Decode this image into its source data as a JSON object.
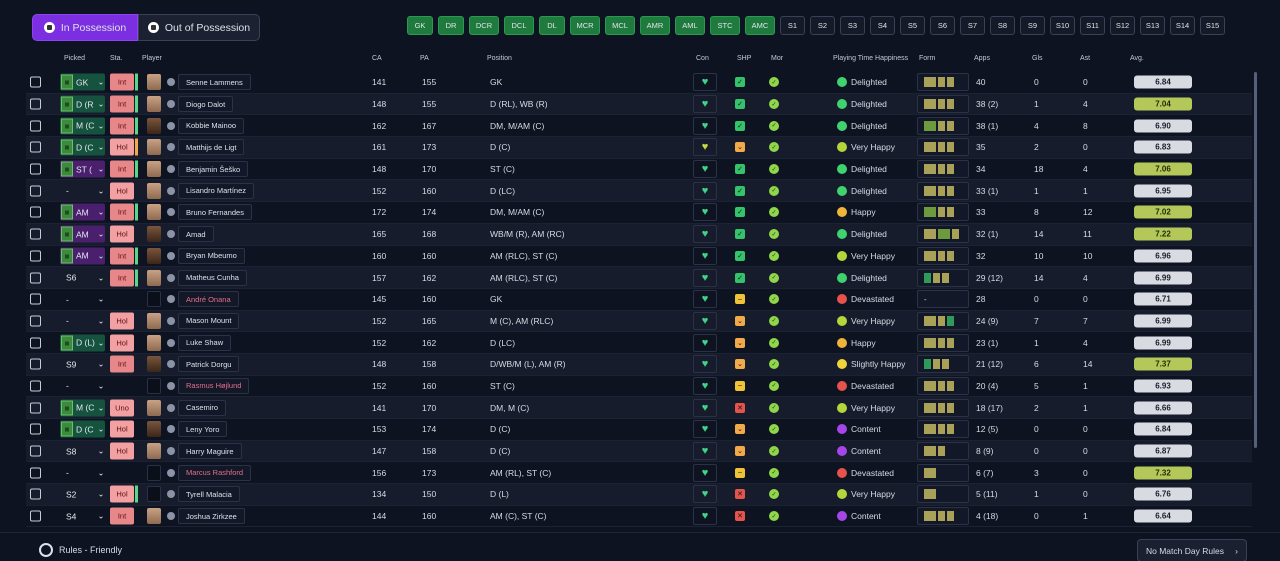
{
  "tabs": {
    "in_possession": "In Possession",
    "out_of_possession": "Out of Possession"
  },
  "positions": [
    "GK",
    "DR",
    "DCR",
    "DCL",
    "DL",
    "MCR",
    "MCL",
    "AMR",
    "AML",
    "STC",
    "AMC"
  ],
  "slots": [
    "S1",
    "S2",
    "S3",
    "S4",
    "S5",
    "S6",
    "S7",
    "S8",
    "S9",
    "S10",
    "S11",
    "S12",
    "S13",
    "S14",
    "S15"
  ],
  "headers": {
    "picked": "Picked",
    "sta": "Sta.",
    "player": "Player",
    "ca": "CA",
    "pa": "PA",
    "position": "Position",
    "con": "Con",
    "shp": "SHP",
    "mor": "Mor",
    "pth": "Playing Time Happiness",
    "form": "Form",
    "apps": "Apps",
    "gls": "Gls",
    "ast": "Ast",
    "avg": "Avg."
  },
  "players": [
    {
      "picked": "GK",
      "pick_style": "pitch",
      "sta": "Int",
      "bar": "g",
      "name": "Senne Lammens",
      "ca": "141",
      "pa": "155",
      "pos": "GK",
      "con": "g",
      "shp": "ok",
      "hap": "Delighted",
      "emo": "delighted",
      "form": "abb",
      "apps": "40",
      "gls": "0",
      "ast": "0",
      "avg": "6.84",
      "avg_hi": false,
      "face": "l"
    },
    {
      "picked": "D (R",
      "pick_style": "pitch-grn",
      "sta": "Int",
      "bar": "g",
      "name": "Diogo Dalot",
      "ca": "148",
      "pa": "155",
      "pos": "D (RL), WB (R)",
      "con": "g",
      "shp": "ok",
      "hap": "Delighted",
      "emo": "delighted",
      "form": "abb",
      "apps": "38 (2)",
      "gls": "1",
      "ast": "4",
      "avg": "7.04",
      "avg_hi": true,
      "face": "l"
    },
    {
      "picked": "M (C",
      "pick_style": "pitch-grn",
      "sta": "Int",
      "bar": "g",
      "name": "Kobbie Mainoo",
      "ca": "162",
      "pa": "167",
      "pos": "DM, M/AM (C)",
      "con": "g",
      "shp": "ok",
      "hap": "Delighted",
      "emo": "delighted",
      "form": "cbb",
      "apps": "38 (1)",
      "gls": "4",
      "ast": "8",
      "avg": "6.90",
      "avg_hi": false,
      "face": "d"
    },
    {
      "picked": "D (C",
      "pick_style": "pitch-grn",
      "sta": "Hol",
      "bar": "o",
      "name": "Matthijs de Ligt",
      "ca": "161",
      "pa": "173",
      "pos": "D (C)",
      "con": "y",
      "shp": "warn",
      "hap": "Very Happy",
      "emo": "veryhappy",
      "form": "abb",
      "apps": "35",
      "gls": "2",
      "ast": "0",
      "avg": "6.83",
      "avg_hi": false,
      "face": "l"
    },
    {
      "picked": "ST (",
      "pick_style": "pitch-pur",
      "sta": "Int",
      "bar": "g",
      "name": "Benjamin Šeško",
      "ca": "148",
      "pa": "170",
      "pos": "ST (C)",
      "con": "g",
      "shp": "ok",
      "hap": "Delighted",
      "emo": "delighted",
      "form": "abb",
      "apps": "34",
      "gls": "18",
      "ast": "4",
      "avg": "7.06",
      "avg_hi": true,
      "face": "l"
    },
    {
      "picked": "-",
      "pick_style": "plain",
      "sta": "Hol",
      "bar": "",
      "name": "Lisandro Martínez",
      "ca": "152",
      "pa": "160",
      "pos": "D (LC)",
      "con": "g",
      "shp": "ok",
      "hap": "Delighted",
      "emo": "delighted",
      "form": "abb",
      "apps": "33 (1)",
      "gls": "1",
      "ast": "1",
      "avg": "6.95",
      "avg_hi": false,
      "face": "l"
    },
    {
      "picked": "AM",
      "pick_style": "pitch-pur",
      "sta": "Int",
      "bar": "g",
      "name": "Bruno Fernandes",
      "ca": "172",
      "pa": "174",
      "pos": "DM, M/AM (C)",
      "con": "g",
      "shp": "ok",
      "hap": "Happy",
      "emo": "happy",
      "form": "cbb",
      "apps": "33",
      "gls": "8",
      "ast": "12",
      "avg": "7.02",
      "avg_hi": true,
      "face": "l"
    },
    {
      "picked": "AM",
      "pick_style": "pitch-pur",
      "sta": "Hol",
      "bar": "",
      "name": "Amad",
      "ca": "165",
      "pa": "168",
      "pos": "WB/M (R), AM (RC)",
      "con": "g",
      "shp": "ok",
      "hap": "Delighted",
      "emo": "delighted",
      "form": "acb",
      "apps": "32 (1)",
      "gls": "14",
      "ast": "11",
      "avg": "7.22",
      "avg_hi": true,
      "face": "d"
    },
    {
      "picked": "AM",
      "pick_style": "pitch-pur",
      "sta": "Int",
      "bar": "g",
      "name": "Bryan Mbeumo",
      "ca": "160",
      "pa": "160",
      "pos": "AM (RLC), ST (C)",
      "con": "g",
      "shp": "ok",
      "hap": "Very Happy",
      "emo": "veryhappy",
      "form": "abb",
      "apps": "32",
      "gls": "10",
      "ast": "10",
      "avg": "6.96",
      "avg_hi": false,
      "face": "d"
    },
    {
      "picked": "S6",
      "pick_style": "plain",
      "sta": "Int",
      "bar": "g",
      "name": "Matheus Cunha",
      "ca": "157",
      "pa": "162",
      "pos": "AM (RLC), ST (C)",
      "con": "g",
      "shp": "ok",
      "hap": "Delighted",
      "emo": "delighted",
      "form": "dbb",
      "apps": "29 (12)",
      "gls": "14",
      "ast": "4",
      "avg": "6.99",
      "avg_hi": false,
      "face": "l"
    },
    {
      "picked": "-",
      "pick_style": "plain",
      "sta": "",
      "bar": "",
      "name": "André Onana",
      "pink": true,
      "ca": "145",
      "pa": "160",
      "pos": "GK",
      "con": "g",
      "shp": "mid",
      "hap": "Devastated",
      "emo": "devastated",
      "form": "-",
      "apps": "28",
      "gls": "0",
      "ast": "0",
      "avg": "6.71",
      "avg_hi": false,
      "face": "s"
    },
    {
      "picked": "-",
      "pick_style": "plain",
      "sta": "Hol",
      "bar": "",
      "name": "Mason Mount",
      "ca": "152",
      "pa": "165",
      "pos": "M (C), AM (RLC)",
      "con": "g",
      "shp": "warn",
      "hap": "Very Happy",
      "emo": "veryhappy",
      "form": "abd",
      "apps": "24 (9)",
      "gls": "7",
      "ast": "7",
      "avg": "6.99",
      "avg_hi": false,
      "face": "l"
    },
    {
      "picked": "D (L)",
      "pick_style": "pitch-grn",
      "sta": "Hol",
      "bar": "",
      "name": "Luke Shaw",
      "ca": "152",
      "pa": "162",
      "pos": "D (LC)",
      "con": "g",
      "shp": "warn",
      "hap": "Happy",
      "emo": "happy",
      "form": "abb",
      "apps": "23 (1)",
      "gls": "1",
      "ast": "4",
      "avg": "6.99",
      "avg_hi": false,
      "face": "l"
    },
    {
      "picked": "S9",
      "pick_style": "plain",
      "sta": "Int",
      "bar": "",
      "name": "Patrick Dorgu",
      "ca": "148",
      "pa": "158",
      "pos": "D/WB/M (L), AM (R)",
      "con": "g",
      "shp": "warn",
      "hap": "Slightly Happy",
      "emo": "slightly",
      "form": "dbb",
      "apps": "21 (12)",
      "gls": "6",
      "ast": "14",
      "avg": "7.37",
      "avg_hi": true,
      "face": "d"
    },
    {
      "picked": "-",
      "pick_style": "plain",
      "sta": "",
      "bar": "",
      "name": "Rasmus Højlund",
      "pink": true,
      "ca": "152",
      "pa": "160",
      "pos": "ST (C)",
      "con": "g",
      "shp": "mid",
      "hap": "Devastated",
      "emo": "devastated",
      "form": "abb",
      "apps": "20 (4)",
      "gls": "5",
      "ast": "1",
      "avg": "6.93",
      "avg_hi": false,
      "face": "s"
    },
    {
      "picked": "M (C",
      "pick_style": "pitch-grn",
      "sta": "Uno",
      "bar": "",
      "name": "Casemiro",
      "ca": "141",
      "pa": "170",
      "pos": "DM, M (C)",
      "con": "g",
      "shp": "bad",
      "hap": "Very Happy",
      "emo": "veryhappy",
      "form": "abb",
      "apps": "18 (17)",
      "gls": "2",
      "ast": "1",
      "avg": "6.66",
      "avg_hi": false,
      "face": "l"
    },
    {
      "picked": "D (C",
      "pick_style": "pitch-grn",
      "sta": "Hol",
      "bar": "",
      "name": "Leny Yoro",
      "ca": "153",
      "pa": "174",
      "pos": "D (C)",
      "con": "g",
      "shp": "warn",
      "hap": "Content",
      "emo": "content",
      "form": "abb",
      "apps": "12 (5)",
      "gls": "0",
      "ast": "0",
      "avg": "6.84",
      "avg_hi": false,
      "face": "d"
    },
    {
      "picked": "S8",
      "pick_style": "plain",
      "sta": "Hol",
      "bar": "",
      "name": "Harry Maguire",
      "ca": "147",
      "pa": "158",
      "pos": "D (C)",
      "con": "g",
      "shp": "warn",
      "hap": "Content",
      "emo": "content",
      "form": "ab",
      "apps": "8 (9)",
      "gls": "0",
      "ast": "0",
      "avg": "6.87",
      "avg_hi": false,
      "face": "l"
    },
    {
      "picked": "-",
      "pick_style": "plain",
      "sta": "",
      "bar": "",
      "name": "Marcus Rashford",
      "pink": true,
      "ca": "156",
      "pa": "173",
      "pos": "AM (RL), ST (C)",
      "con": "g",
      "shp": "mid",
      "hap": "Devastated",
      "emo": "devastated",
      "form": "a",
      "apps": "6 (7)",
      "gls": "3",
      "ast": "0",
      "avg": "7.32",
      "avg_hi": true,
      "face": "s"
    },
    {
      "picked": "S2",
      "pick_style": "plain",
      "sta": "Hol",
      "bar": "g",
      "name": "Tyrell Malacia",
      "ca": "134",
      "pa": "150",
      "pos": "D (L)",
      "con": "g",
      "shp": "bad",
      "hap": "Very Happy",
      "emo": "veryhappy",
      "form": "a",
      "apps": "5 (11)",
      "gls": "1",
      "ast": "0",
      "avg": "6.76",
      "avg_hi": false,
      "face": "s"
    },
    {
      "picked": "S4",
      "pick_style": "plain",
      "sta": "Int",
      "bar": "",
      "name": "Joshua Zirkzee",
      "ca": "144",
      "pa": "160",
      "pos": "AM (C), ST (C)",
      "con": "g",
      "shp": "bad",
      "hap": "Content",
      "emo": "content",
      "form": "abb",
      "apps": "4 (18)",
      "gls": "0",
      "ast": "1",
      "avg": "6.64",
      "avg_hi": false,
      "face": "l"
    }
  ],
  "footer": {
    "rules": "Rules - Friendly",
    "match_day": "No Match Day Rules"
  }
}
